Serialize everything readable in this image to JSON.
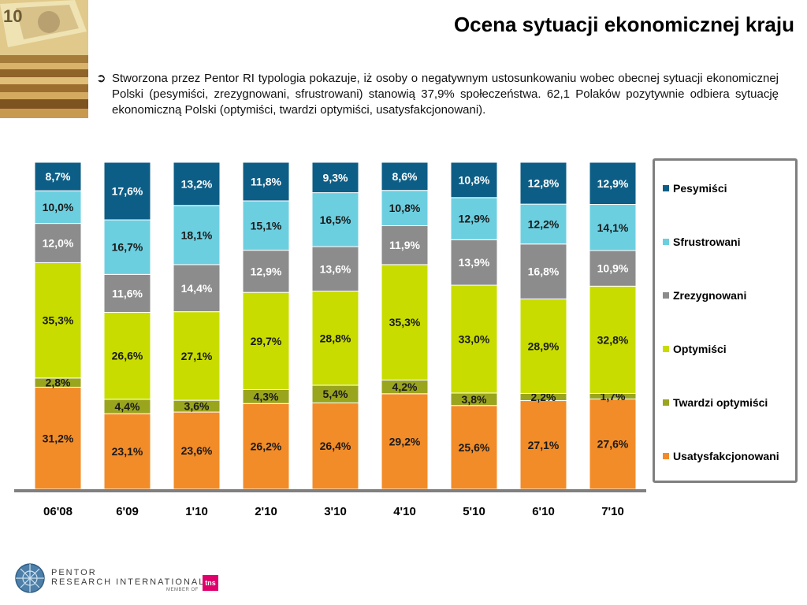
{
  "header": {
    "title": "Ocena sytuacji ekonomicznej kraju",
    "bullet_symbol": "➲",
    "bullet_text": "Stworzona przez Pentor RI typologia pokazuje, iż osoby o negatywnym ustosunkowaniu wobec obecnej sytuacji ekonomicznej Polski (pesymiści, zrezygnowani, sfrustrowani) stanowią 37,9% społeczeństwa. 62,1 Polaków pozytywnie odbiera sytuację ekonomiczną Polski (optymiści, twardzi optymiści, usatysfakcjonowani)."
  },
  "images": {
    "photo": "banknotes-photo"
  },
  "logo": {
    "line1": "PENTOR",
    "line2": "RESEARCH INTERNATIONAL",
    "member": "MEMBER OF",
    "tns": "tns"
  },
  "chart_data": {
    "type": "bar",
    "stacked": true,
    "ylim": [
      0,
      100
    ],
    "grid": false,
    "legend_placement": "right",
    "categories": [
      "06'08",
      "6'09",
      "1'10",
      "2'10",
      "3'10",
      "4'10",
      "5'10",
      "6'10",
      "7'10"
    ],
    "series": [
      {
        "name": "Usatysfakcjonowani",
        "color": "#f28c28",
        "label_color": "#1a1a1a",
        "values": [
          31.2,
          23.1,
          23.6,
          26.2,
          26.4,
          29.2,
          25.6,
          27.1,
          27.6
        ],
        "labels": [
          "31,2%",
          "23,1%",
          "23,6%",
          "26,2%",
          "26,4%",
          "29,2%",
          "25,6%",
          "27,1%",
          "27,6%"
        ]
      },
      {
        "name": "Twardzi optymiści",
        "color": "#9aa51e",
        "label_color": "#1a1a1a",
        "values": [
          2.8,
          4.4,
          3.6,
          4.3,
          5.4,
          4.2,
          3.8,
          2.2,
          1.7
        ],
        "labels": [
          "2,8%",
          "4,4%",
          "3,6%",
          "4,3%",
          "5,4%",
          "4,2%",
          "3,8%",
          "2,2%",
          "1,7%"
        ]
      },
      {
        "name": "Optymiści",
        "color": "#c8dc00",
        "label_color": "#1a1a1a",
        "values": [
          35.3,
          26.6,
          27.1,
          29.7,
          28.8,
          35.3,
          33.0,
          28.9,
          32.8
        ],
        "labels": [
          "35,3%",
          "26,6%",
          "27,1%",
          "29,7%",
          "28,8%",
          "35,3%",
          "33,0%",
          "28,9%",
          "32,8%"
        ]
      },
      {
        "name": "Zrezygnowani",
        "color": "#8c8c8c",
        "label_color": "#ffffff",
        "values": [
          12.0,
          11.6,
          14.4,
          12.9,
          13.6,
          11.9,
          13.9,
          16.8,
          10.9
        ],
        "labels": [
          "12,0%",
          "11,6%",
          "14,4%",
          "12,9%",
          "13,6%",
          "11,9%",
          "13,9%",
          "16,8%",
          "10,9%"
        ]
      },
      {
        "name": "Sfrustrowani",
        "color": "#6ccfe0",
        "label_color": "#1a1a1a",
        "values": [
          10.0,
          16.7,
          18.1,
          15.1,
          16.5,
          10.8,
          12.9,
          12.2,
          14.1
        ],
        "labels": [
          "10,0%",
          "16,7%",
          "18,1%",
          "15,1%",
          "16,5%",
          "10,8%",
          "12,9%",
          "12,2%",
          "14,1%"
        ]
      },
      {
        "name": "Pesymiści",
        "color": "#0d5e86",
        "label_color": "#ffffff",
        "values": [
          8.7,
          17.6,
          13.2,
          11.8,
          9.3,
          8.6,
          10.8,
          12.8,
          12.9
        ],
        "labels": [
          "8,7%",
          "17,6%",
          "13,2%",
          "11,8%",
          "9,3%",
          "8,6%",
          "10,8%",
          "12,8%",
          "12,9%"
        ]
      }
    ],
    "legend_order": [
      "Pesymiści",
      "Sfrustrowani",
      "Zrezygnowani",
      "Optymiści",
      "Twardzi optymiści",
      "Usatysfakcjonowani"
    ]
  }
}
